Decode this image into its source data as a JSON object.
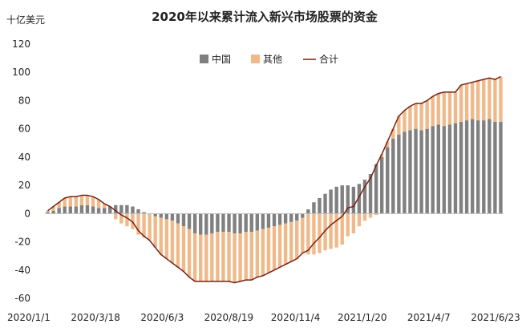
{
  "chart_data": {
    "type": "bar",
    "title": "2020年以来累计流入新兴市场股票的资金",
    "unit_label": "十亿美元",
    "ylim": [
      -60,
      120
    ],
    "y_ticks": [
      120,
      100,
      80,
      60,
      40,
      20,
      0,
      -20,
      -40,
      -60
    ],
    "x_tick_labels": [
      "2020/1/1",
      "2020/3/18",
      "2020/6/3",
      "2020/8/19",
      "2020/11/4",
      "2021/1/20",
      "2021/4/7",
      "2021/6/23"
    ],
    "legend_position": "top-center",
    "grid": false,
    "stacked": true,
    "series": [
      {
        "name": "中国",
        "kind": "bar",
        "color": "#808080",
        "values": [
          1,
          2,
          4,
          5,
          5,
          5,
          6,
          6,
          5,
          4,
          4,
          5,
          6,
          6,
          6,
          5,
          3,
          1,
          0,
          -2,
          -3,
          -4,
          -5,
          -7,
          -9,
          -11,
          -14,
          -15,
          -15,
          -14,
          -13,
          -13,
          -13,
          -14,
          -14,
          -13,
          -13,
          -12,
          -11,
          -10,
          -9,
          -8,
          -7,
          -6,
          -5,
          -3,
          3,
          8,
          11,
          14,
          17,
          19,
          20,
          20,
          19,
          21,
          24,
          28,
          35,
          40,
          47,
          53,
          56,
          58,
          59,
          60,
          59,
          60,
          62,
          63,
          62,
          63,
          64,
          65,
          66,
          67,
          66,
          66,
          67,
          65,
          65
        ]
      },
      {
        "name": "其他",
        "kind": "bar",
        "color": "#f0b98a",
        "values": [
          1,
          3,
          4,
          6,
          7,
          7,
          7,
          7,
          7,
          6,
          3,
          0,
          -4,
          -7,
          -9,
          -11,
          -15,
          -17,
          -19,
          -22,
          -26,
          -28,
          -30,
          -31,
          -32,
          -34,
          -34,
          -33,
          -33,
          -34,
          -35,
          -35,
          -35,
          -35,
          -34,
          -34,
          -34,
          -33,
          -33,
          -32,
          -31,
          -30,
          -29,
          -28,
          -27,
          -25,
          -29,
          -29,
          -28,
          -26,
          -25,
          -24,
          -22,
          -16,
          -14,
          -9,
          -5,
          -3,
          -1,
          2,
          4,
          7,
          13,
          15,
          17,
          18,
          19,
          20,
          21,
          22,
          24,
          23,
          22,
          26,
          26,
          26,
          28,
          29,
          29,
          30,
          32
        ]
      },
      {
        "name": "合计",
        "kind": "line",
        "color": "#7a1f10",
        "values": [
          2,
          5,
          8,
          11,
          12,
          12,
          13,
          13,
          12,
          10,
          7,
          5,
          2,
          -1,
          -3,
          -6,
          -12,
          -16,
          -19,
          -24,
          -29,
          -32,
          -35,
          -38,
          -41,
          -45,
          -48,
          -48,
          -48,
          -48,
          -48,
          -48,
          -48,
          -49,
          -48,
          -47,
          -47,
          -45,
          -44,
          -42,
          -40,
          -38,
          -36,
          -34,
          -32,
          -28,
          -26,
          -21,
          -17,
          -12,
          -8,
          -5,
          -2,
          4,
          5,
          12,
          19,
          25,
          34,
          42,
          51,
          60,
          69,
          73,
          76,
          78,
          78,
          80,
          83,
          85,
          86,
          86,
          86,
          91,
          92,
          93,
          94,
          95,
          96,
          95,
          97
        ]
      }
    ]
  }
}
